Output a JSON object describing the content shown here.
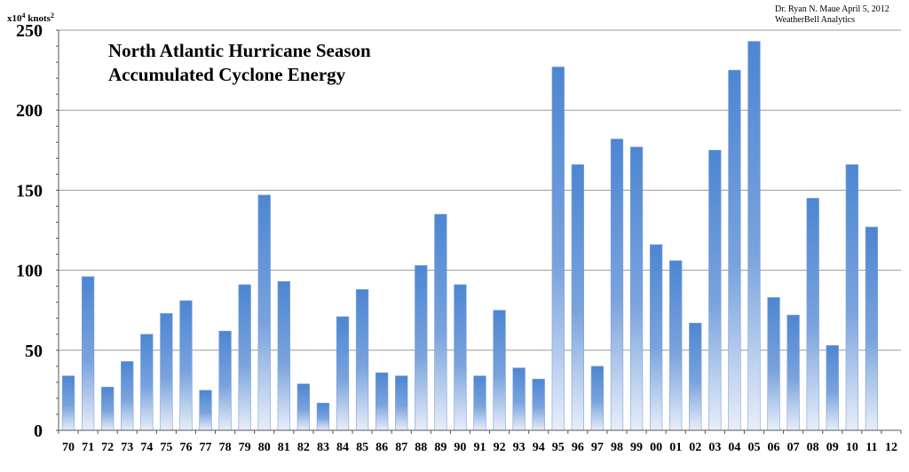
{
  "chart_data": {
    "type": "bar",
    "title_lines": [
      "North Atlantic Hurricane Season",
      "Accumulated Cyclone Energy"
    ],
    "credit_lines": [
      "Dr. Ryan N. Maue  April 5, 2012",
      "WeatherBell  Analytics"
    ],
    "ylabel_base": "x10",
    "ylabel_exp": "4",
    "ylabel_unit": " knots",
    "ylabel_unit_exp": "2",
    "ylim": [
      0,
      250
    ],
    "yticks": [
      0,
      50,
      100,
      150,
      200,
      250
    ],
    "grid": true,
    "categories": [
      "70",
      "71",
      "72",
      "73",
      "74",
      "75",
      "76",
      "77",
      "78",
      "79",
      "80",
      "81",
      "82",
      "83",
      "84",
      "85",
      "86",
      "87",
      "88",
      "89",
      "90",
      "91",
      "92",
      "93",
      "94",
      "95",
      "96",
      "97",
      "98",
      "99",
      "00",
      "01",
      "02",
      "03",
      "04",
      "05",
      "06",
      "07",
      "08",
      "09",
      "10",
      "11",
      "12"
    ],
    "values": [
      34,
      96,
      27,
      43,
      60,
      73,
      81,
      25,
      62,
      91,
      147,
      93,
      29,
      17,
      71,
      88,
      36,
      34,
      103,
      135,
      91,
      34,
      75,
      39,
      32,
      227,
      166,
      40,
      182,
      177,
      116,
      106,
      67,
      175,
      225,
      243,
      83,
      72,
      145,
      53,
      166,
      127,
      null
    ],
    "colors": {
      "bar_top": "#4d86d2",
      "bar_bottom": "#e8eef9",
      "bar_stroke": "#7ea3d8",
      "grid": "#9a9a9a",
      "axis": "#555555"
    }
  }
}
